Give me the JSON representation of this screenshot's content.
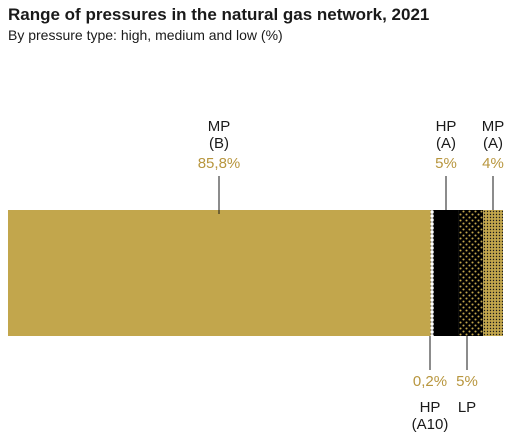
{
  "title": "Range of pressures in the natural gas network, 2021",
  "subtitle": "By pressure type: high, medium and low (%)",
  "colors": {
    "gold": "#c2a64c",
    "black": "#000000",
    "label": "#1a1a1a",
    "value": "#b8963e"
  },
  "chart_data": {
    "type": "bar",
    "stacked": true,
    "orientation": "horizontal",
    "title": "Range of pressures in the natural gas network, 2021",
    "subtitle": "By pressure type: high, medium and low (%)",
    "unit": "%",
    "segments": [
      {
        "name_lines": [
          "MP",
          "(B)"
        ],
        "value": 85.8,
        "value_label": "85,8%",
        "label_position": "above",
        "fill": "solid-gold"
      },
      {
        "name_lines": [
          "HP",
          "(A10)"
        ],
        "value": 0.2,
        "value_label": "0,2%",
        "label_position": "below",
        "fill": "dotted-white"
      },
      {
        "name_lines": [
          "HP",
          "(A)"
        ],
        "value": 5,
        "value_label": "5%",
        "label_position": "above",
        "fill": "solid-black"
      },
      {
        "name_lines": [
          "LP"
        ],
        "value": 5,
        "value_label": "5%",
        "label_position": "below",
        "fill": "gold-diamonds-on-black"
      },
      {
        "name_lines": [
          "MP",
          "(A)"
        ],
        "value": 4,
        "value_label": "4%",
        "label_position": "above",
        "fill": "fine-dots-on-gold"
      }
    ]
  }
}
